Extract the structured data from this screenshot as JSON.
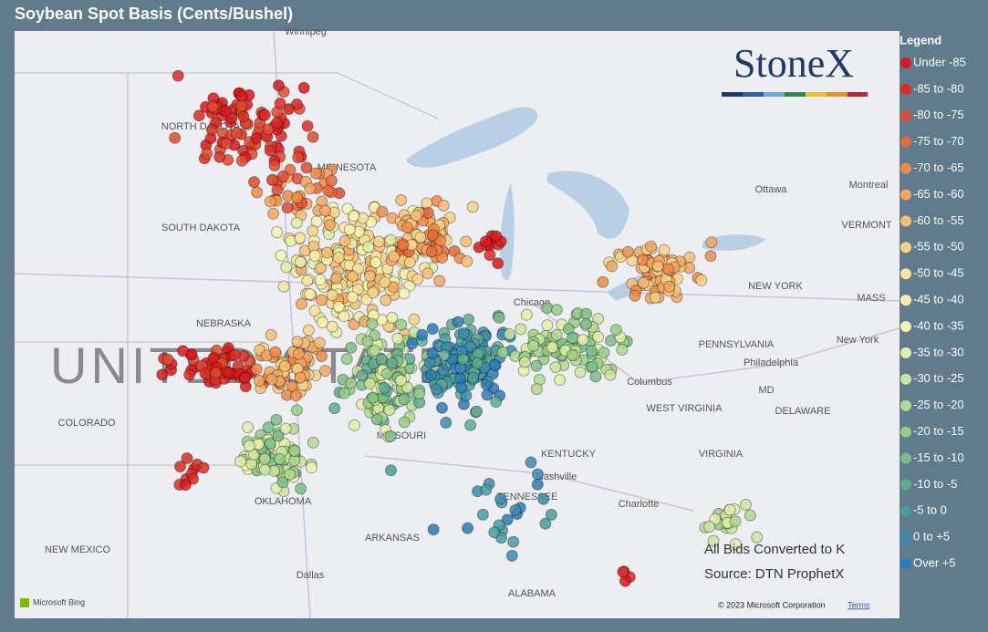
{
  "title": "Soybean Spot Basis (Cents/Bushel)",
  "legend": {
    "title": "Legend",
    "items": [
      {
        "label": "Under -85",
        "color": "#d7191c"
      },
      {
        "label": "-85 to -80",
        "color": "#dc2a23"
      },
      {
        "label": "-80 to -75",
        "color": "#e04a2e"
      },
      {
        "label": "-75 to -70",
        "color": "#e8683a"
      },
      {
        "label": "-70 to -65",
        "color": "#ef8a48"
      },
      {
        "label": "-65 to -60",
        "color": "#f4a55e"
      },
      {
        "label": "-60 to -55",
        "color": "#f7bd73"
      },
      {
        "label": "-55 to -50",
        "color": "#f9d287"
      },
      {
        "label": "-50 to -45",
        "color": "#fae49a"
      },
      {
        "label": "-45 to -40",
        "color": "#fbf0aa"
      },
      {
        "label": "-40 to -35",
        "color": "#f6f5b0"
      },
      {
        "label": "-35 to -30",
        "color": "#e3efa7"
      },
      {
        "label": "-30 to -25",
        "color": "#cce59c"
      },
      {
        "label": "-25 to -20",
        "color": "#b2d98f"
      },
      {
        "label": "-20 to -15",
        "color": "#96cc87"
      },
      {
        "label": "-15 to -10",
        "color": "#7abd86"
      },
      {
        "label": "-10 to -5",
        "color": "#5eaa8e"
      },
      {
        "label": "-5 to 0",
        "color": "#4b9ba0"
      },
      {
        "label": "0 to +5",
        "color": "#3d8bb3"
      },
      {
        "label": "Over +5",
        "color": "#2c7bb6"
      }
    ]
  },
  "logo": "StoneX",
  "notes": [
    "All Bids Converted to K",
    "Source: DTN ProphetX"
  ],
  "map_labels": [
    "UNITED STATES",
    "Winnipeg",
    "NORTH DAKOTA",
    "MINNESOTA",
    "SOUTH DAKOTA",
    "NEBRASKA",
    "COLORADO",
    "MISSOURI",
    "OKLAHOMA",
    "NEW MEXICO",
    "ARKANSAS",
    "TENNESSEE",
    "KENTUCKY",
    "ALABAMA",
    "WEST VIRGINIA",
    "VIRGINIA",
    "PENNSYLVANIA",
    "NEW YORK",
    "VERMONT",
    "MASS",
    "Ottawa",
    "Montreal",
    "Chicago",
    "Columbus",
    "Nashville",
    "Dallas",
    "Philadelphia",
    "New York",
    "Charlotte",
    "DELAWARE",
    "MD"
  ],
  "attribution": {
    "copyright": "© 2023 Microsoft Corporation",
    "terms": "Terms",
    "provider": "Microsoft Bing"
  }
}
